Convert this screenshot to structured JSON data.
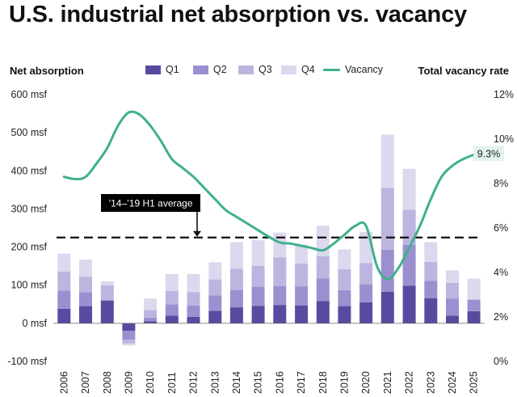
{
  "title": "U.S. industrial net absorption vs. vacancy",
  "left_axis_label": "Net absorption",
  "right_axis_label": "Total vacancy rate",
  "annotation": "’14–’19 H1 average",
  "vacancy_end_label": "9.3%",
  "colors": {
    "Q1": "#5a4a9f",
    "Q2": "#9c8fd0",
    "Q3": "#bdb4e0",
    "Q4": "#dcd8ee",
    "vacancy": "#3fb08d",
    "avg_line": "#111111",
    "callout_bg": "#000000",
    "end_label_bg": "#e3f3ee"
  },
  "chart_data": {
    "type": "bar",
    "stacked": true,
    "categories": [
      "2006",
      "2007",
      "2008",
      "2009",
      "2010",
      "2011",
      "2012",
      "2013",
      "2014",
      "2015",
      "2016",
      "2017",
      "2018",
      "2019",
      "2020",
      "2021",
      "2022",
      "2023",
      "2024",
      "2025"
    ],
    "series": [
      {
        "name": "Q1",
        "values": [
          38,
          45,
          60,
          -20,
          5,
          20,
          17,
          33,
          42,
          46,
          48,
          47,
          58,
          45,
          55,
          83,
          99,
          66,
          20,
          32
        ]
      },
      {
        "name": "Q2",
        "values": [
          48,
          37,
          0,
          -23,
          10,
          30,
          30,
          40,
          46,
          50,
          50,
          50,
          60,
          42,
          48,
          110,
          107,
          45,
          45,
          30
        ]
      },
      {
        "name": "Q3",
        "values": [
          50,
          40,
          40,
          -10,
          20,
          35,
          35,
          42,
          55,
          55,
          75,
          60,
          58,
          55,
          55,
          162,
          92,
          50,
          41,
          0
        ]
      },
      {
        "name": "Q4",
        "values": [
          47,
          45,
          10,
          -5,
          30,
          44,
          47,
          45,
          70,
          67,
          65,
          50,
          80,
          52,
          82,
          140,
          107,
          52,
          33,
          55
        ]
      }
    ],
    "vacancy": {
      "name": "Vacancy",
      "x": [
        2006,
        2006.5,
        2007,
        2007.5,
        2008,
        2008.5,
        2009,
        2009.5,
        2010,
        2010.5,
        2011,
        2011.5,
        2012,
        2012.5,
        2013,
        2013.5,
        2014,
        2014.5,
        2015,
        2015.5,
        2016,
        2016.5,
        2017,
        2017.5,
        2018,
        2018.5,
        2019,
        2019.5,
        2020,
        2020.5,
        2021,
        2021.5,
        2022,
        2022.5,
        2023,
        2023.5,
        2024,
        2024.5,
        2025
      ],
      "values": [
        8.3,
        8.2,
        8.3,
        8.9,
        9.6,
        10.6,
        11.2,
        11.1,
        10.6,
        9.9,
        9.1,
        8.7,
        8.3,
        7.8,
        7.3,
        6.8,
        6.5,
        6.2,
        5.9,
        5.6,
        5.35,
        5.3,
        5.2,
        5.1,
        5.0,
        5.3,
        5.7,
        6.1,
        6.1,
        4.3,
        3.7,
        4.2,
        5.1,
        6.1,
        7.3,
        8.3,
        8.8,
        9.1,
        9.3
      ]
    },
    "average_line": {
      "label": "’14–’19 H1 average",
      "value": 225
    },
    "y_left": {
      "min": -100,
      "max": 600,
      "ticks": [
        -100,
        0,
        100,
        200,
        300,
        400,
        500,
        600
      ],
      "tick_labels": [
        "-100 msf",
        "0 msf",
        "100 msf",
        "200 msf",
        "300 msf",
        "400 msf",
        "500 msf",
        "600 msf"
      ]
    },
    "y_right": {
      "min": 0,
      "max": 12,
      "ticks": [
        0,
        2,
        4,
        6,
        8,
        10,
        12
      ],
      "tick_labels": [
        "0%",
        "2%",
        "4%",
        "6%",
        "8%",
        "10%",
        "12%"
      ]
    },
    "legend": [
      "Q1",
      "Q2",
      "Q3",
      "Q4",
      "Vacancy"
    ],
    "legend_position": "top",
    "grid": false
  }
}
